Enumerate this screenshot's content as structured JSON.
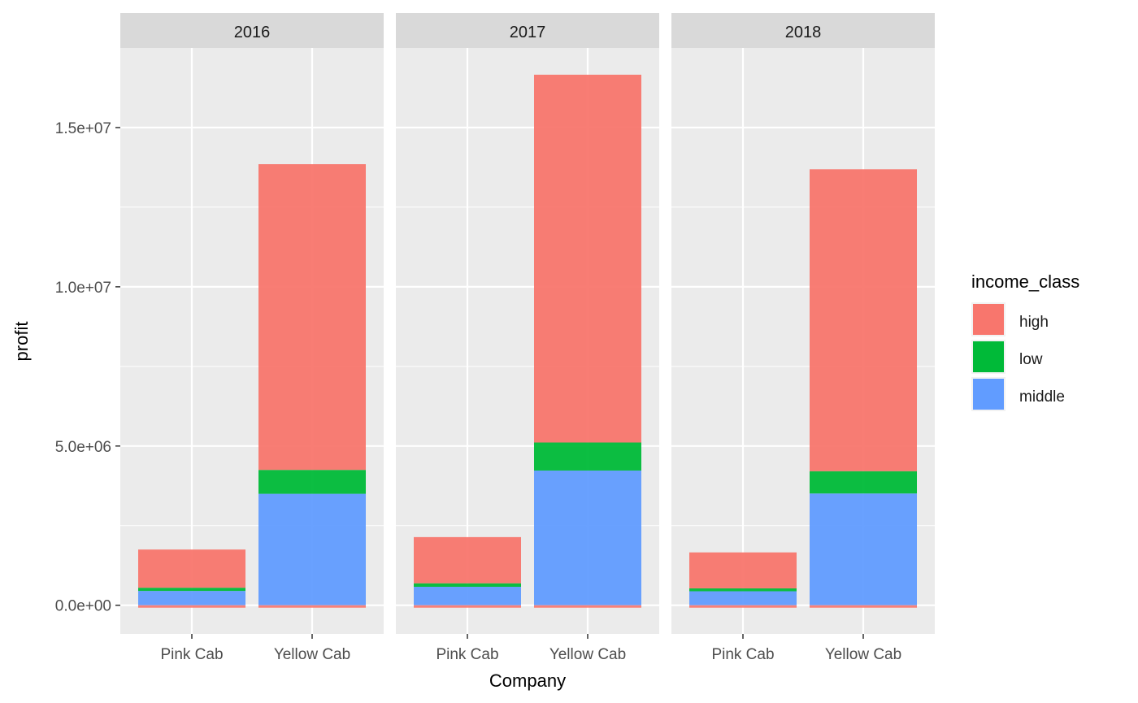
{
  "chart_data": {
    "type": "bar",
    "stacked": true,
    "facet_by": "year",
    "facets": [
      {
        "label": "2016",
        "categories": [
          "Pink Cab",
          "Yellow Cab"
        ],
        "series": [
          {
            "name": "middle",
            "values": [
              450000,
              3500000
            ]
          },
          {
            "name": "low",
            "values": [
              100000,
              750000
            ]
          },
          {
            "name": "high",
            "values": [
              1200000,
              9600000
            ]
          }
        ]
      },
      {
        "label": "2017",
        "categories": [
          "Pink Cab",
          "Yellow Cab"
        ],
        "series": [
          {
            "name": "middle",
            "values": [
              580000,
              4230000
            ]
          },
          {
            "name": "low",
            "values": [
              110000,
              880000
            ]
          },
          {
            "name": "high",
            "values": [
              1450000,
              11550000
            ]
          }
        ]
      },
      {
        "label": "2018",
        "categories": [
          "Pink Cab",
          "Yellow Cab"
        ],
        "series": [
          {
            "name": "middle",
            "values": [
              440000,
              3510000
            ]
          },
          {
            "name": "low",
            "values": [
              90000,
              700000
            ]
          },
          {
            "name": "high",
            "values": [
              1130000,
              9480000
            ]
          }
        ]
      }
    ],
    "y_ticks": [
      {
        "value": 0,
        "label": "0.0e+00"
      },
      {
        "value": 5000000,
        "label": "5.0e+06"
      },
      {
        "value": 10000000,
        "label": "1.0e+07"
      },
      {
        "value": 15000000,
        "label": "1.5e+07"
      }
    ],
    "ylim": [
      -900000,
      17500000
    ],
    "xlabel": "Company",
    "ylabel": "profit",
    "legend": {
      "title": "income_class",
      "position": "right",
      "entries": [
        {
          "name": "high",
          "color": "#F8766D"
        },
        {
          "name": "low",
          "color": "#00BA38"
        },
        {
          "name": "middle",
          "color": "#619CFF"
        }
      ]
    },
    "grid": true,
    "colors": {
      "panel_bg": "#EBEBEB",
      "strip_bg": "#D9D9D9",
      "grid": "#FFFFFF",
      "text": "#4D4D4D",
      "title_text": "#000000"
    }
  }
}
